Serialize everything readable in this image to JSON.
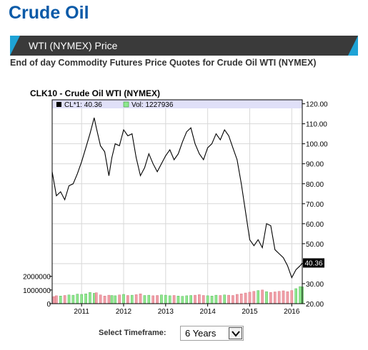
{
  "page": {
    "title": "Crude Oil",
    "section_label": "WTI (NYMEX) Price",
    "subtitle": "End of day Commodity Futures Price Quotes for Crude Oil WTI (NYMEX)"
  },
  "timeframe": {
    "label": "Select Timeframe:",
    "selected": "6 Years"
  },
  "colors": {
    "title": "#0a5aa8",
    "bar_dark": "#3a3a3a",
    "bar_accent": "#1ea3d6",
    "legend_bg": "#e0e0f8",
    "volume_up": "#8ee88e",
    "volume_down": "#f0a0a8"
  },
  "chart_data": {
    "type": "line",
    "title": "CLK10 - Crude Oil WTI (NYMEX)",
    "legend": {
      "price_entry": "CL*1: 40.36",
      "volume_entry": "Vol: 1227936",
      "placement": "top-left"
    },
    "last_price_label": "40.36",
    "grid": true,
    "price_axis": {
      "position": "right",
      "range": [
        20,
        122
      ],
      "ticks": [
        "20.00",
        "30.00",
        "40.00",
        "50.00",
        "60.00",
        "70.00",
        "80.00",
        "90.00",
        "100.00",
        "110.00",
        "120.00"
      ],
      "tick_values": [
        20,
        30,
        40,
        50,
        60,
        70,
        80,
        90,
        100,
        110,
        120
      ]
    },
    "volume_axis": {
      "position": "left",
      "range": [
        0,
        2400000
      ],
      "ticks": [
        "0",
        "1000000",
        "2000000"
      ],
      "tick_values": [
        0,
        1000000,
        2000000
      ]
    },
    "x_axis": {
      "range": [
        2010.3,
        2016.25
      ],
      "ticks": [
        "2011",
        "2012",
        "2013",
        "2014",
        "2015",
        "2016"
      ],
      "tick_values": [
        2011,
        2012,
        2013,
        2014,
        2015,
        2016
      ]
    },
    "price_series": {
      "name": "CL*1",
      "x": [
        2010.3,
        2010.4,
        2010.5,
        2010.6,
        2010.7,
        2010.8,
        2010.9,
        2011.0,
        2011.1,
        2011.2,
        2011.3,
        2011.35,
        2011.45,
        2011.55,
        2011.65,
        2011.72,
        2011.8,
        2011.9,
        2012.0,
        2012.1,
        2012.2,
        2012.3,
        2012.4,
        2012.5,
        2012.6,
        2012.7,
        2012.8,
        2012.9,
        2013.0,
        2013.1,
        2013.2,
        2013.3,
        2013.4,
        2013.5,
        2013.6,
        2013.7,
        2013.8,
        2013.9,
        2014.0,
        2014.1,
        2014.2,
        2014.3,
        2014.4,
        2014.5,
        2014.6,
        2014.7,
        2014.8,
        2014.9,
        2015.0,
        2015.1,
        2015.2,
        2015.3,
        2015.4,
        2015.5,
        2015.6,
        2015.7,
        2015.8,
        2015.9,
        2016.0,
        2016.1,
        2016.2,
        2016.25
      ],
      "values": [
        86,
        74,
        76,
        72,
        79,
        80,
        85,
        91,
        98,
        105,
        113,
        108,
        99,
        96,
        84,
        93,
        100,
        99,
        107,
        104,
        105,
        93,
        84,
        88,
        95,
        90,
        86,
        90,
        94,
        97,
        92,
        95,
        101,
        106,
        108,
        100,
        95,
        92,
        98,
        100,
        105,
        102,
        107,
        104,
        98,
        92,
        80,
        66,
        52,
        49,
        52,
        48,
        60,
        59,
        47,
        45,
        43,
        39,
        33,
        37,
        39,
        40.36
      ]
    },
    "volume_series": {
      "name": "Vol",
      "values": [
        520000,
        580000,
        560000,
        600000,
        640000,
        620000,
        700000,
        680000,
        720000,
        820000,
        760000,
        800000,
        640000,
        560000,
        620000,
        600000,
        580000,
        640000,
        680000,
        600000,
        620000,
        660000,
        720000,
        600000,
        620000,
        580000,
        600000,
        640000,
        620000,
        580000,
        600000,
        560000,
        540000,
        580000,
        600000,
        620000,
        660000,
        600000,
        580000,
        560000,
        620000,
        600000,
        640000,
        620000,
        600000,
        680000,
        720000,
        780000,
        840000,
        900000,
        960000,
        1000000,
        880000,
        820000,
        860000,
        900000,
        940000,
        880000,
        960000,
        1100000,
        1250000,
        1227936
      ],
      "directions": [
        "down",
        "down",
        "up",
        "down",
        "up",
        "up",
        "up",
        "up",
        "up",
        "up",
        "up",
        "down",
        "down",
        "down",
        "down",
        "up",
        "up",
        "down",
        "up",
        "down",
        "up",
        "down",
        "down",
        "up",
        "up",
        "down",
        "down",
        "up",
        "up",
        "up",
        "down",
        "up",
        "up",
        "up",
        "up",
        "down",
        "down",
        "down",
        "up",
        "up",
        "up",
        "down",
        "up",
        "down",
        "down",
        "down",
        "down",
        "down",
        "down",
        "down",
        "up",
        "down",
        "up",
        "down",
        "down",
        "down",
        "down",
        "down",
        "down",
        "up",
        "up",
        "up"
      ]
    }
  }
}
